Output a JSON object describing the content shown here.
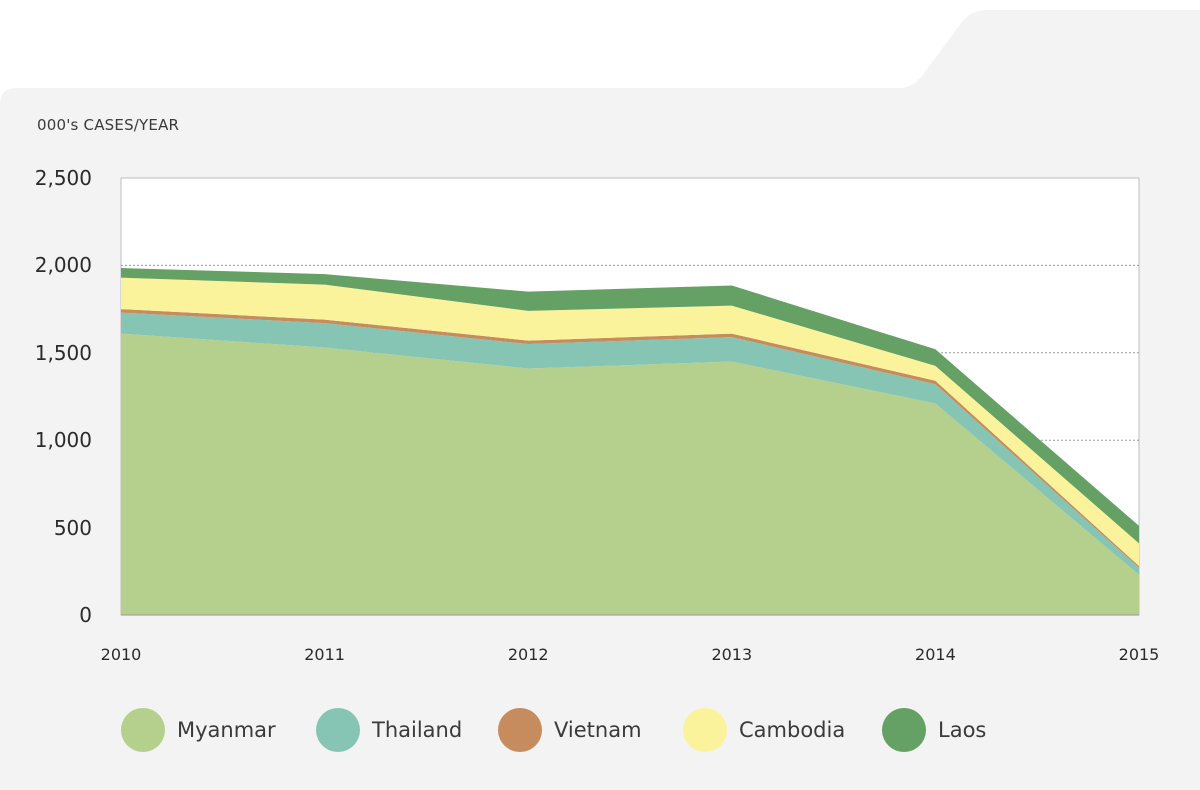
{
  "chart_data": {
    "type": "area",
    "stacked": true,
    "ylabel": "000's CASES/YEAR",
    "xlabel": "",
    "x": [
      "2010",
      "2011",
      "2012",
      "2013",
      "2014",
      "2015"
    ],
    "ylim": [
      0,
      2500
    ],
    "yticks": [
      0,
      500,
      1000,
      1500,
      2000,
      2500
    ],
    "ytick_labels": [
      "0",
      "500",
      "1,000",
      "1,500",
      "2,000",
      "2,500"
    ],
    "grid": true,
    "legend_position": "bottom",
    "series": [
      {
        "name": "Myanmar",
        "color": "#b5cf8c",
        "values": [
          1610,
          1530,
          1410,
          1450,
          1210,
          230
        ]
      },
      {
        "name": "Thailand",
        "color": "#86c5b4",
        "values": [
          120,
          140,
          140,
          140,
          110,
          40
        ]
      },
      {
        "name": "Vietnam",
        "color": "#c68c5e",
        "values": [
          20,
          20,
          20,
          20,
          20,
          10
        ]
      },
      {
        "name": "Cambodia",
        "color": "#fbf39c",
        "values": [
          180,
          200,
          170,
          160,
          85,
          130
        ]
      },
      {
        "name": "Laos",
        "color": "#65a065",
        "values": [
          55,
          60,
          110,
          115,
          95,
          100
        ]
      }
    ]
  }
}
